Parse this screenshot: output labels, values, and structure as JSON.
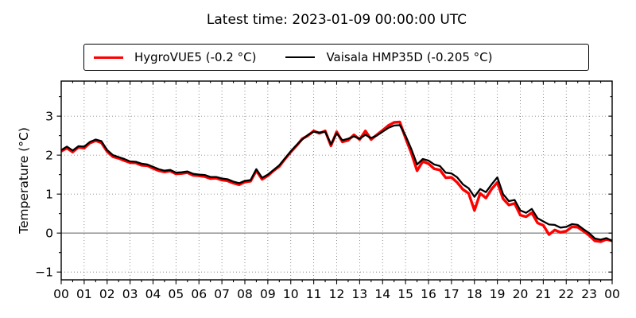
{
  "title": "Latest time: 2023-01-09 00:00:00 UTC",
  "chart_data": {
    "type": "line",
    "title": "Latest time: 2023-01-09 00:00:00 UTC",
    "xlabel": "",
    "ylabel": "Temperature (°C)",
    "xlim": [
      0,
      24
    ],
    "ylim": [
      -1.2,
      3.9
    ],
    "grid": true,
    "grid_style": "dotted",
    "zero_line": 0,
    "zero_line_color": "#8a8a8a",
    "legend_position": "top-center",
    "x_ticks": [
      0,
      1,
      2,
      3,
      4,
      5,
      6,
      7,
      8,
      9,
      10,
      11,
      12,
      13,
      14,
      15,
      16,
      17,
      18,
      19,
      20,
      21,
      22,
      23,
      24
    ],
    "x_tick_labels": [
      "00",
      "01",
      "02",
      "03",
      "04",
      "05",
      "06",
      "07",
      "08",
      "09",
      "10",
      "11",
      "12",
      "13",
      "14",
      "15",
      "16",
      "17",
      "18",
      "19",
      "20",
      "21",
      "22",
      "23",
      "00"
    ],
    "y_ticks": [
      -1,
      0,
      1,
      2,
      3
    ],
    "y_tick_labels": [
      "−1",
      "0",
      "1",
      "2",
      "3"
    ],
    "x_start": 0,
    "x_step": 0.25,
    "series": [
      {
        "name": "HygroVUE5 (-0.2 °C)",
        "latest_value_c": -0.2,
        "color": "#ff0000",
        "width": 3.4,
        "values": [
          2.1,
          2.18,
          2.08,
          2.2,
          2.18,
          2.31,
          2.37,
          2.32,
          2.09,
          1.96,
          1.92,
          1.86,
          1.81,
          1.8,
          1.74,
          1.73,
          1.66,
          1.6,
          1.57,
          1.59,
          1.52,
          1.53,
          1.55,
          1.48,
          1.47,
          1.45,
          1.4,
          1.41,
          1.36,
          1.34,
          1.28,
          1.24,
          1.31,
          1.33,
          1.6,
          1.38,
          1.47,
          1.6,
          1.71,
          1.9,
          2.08,
          2.24,
          2.42,
          2.5,
          2.62,
          2.56,
          2.62,
          2.24,
          2.6,
          2.34,
          2.38,
          2.52,
          2.4,
          2.62,
          2.4,
          2.52,
          2.64,
          2.76,
          2.84,
          2.85,
          2.44,
          2.06,
          1.6,
          1.84,
          1.78,
          1.65,
          1.62,
          1.42,
          1.43,
          1.3,
          1.12,
          1.02,
          0.58,
          1.02,
          0.9,
          1.13,
          1.3,
          0.88,
          0.72,
          0.76,
          0.46,
          0.42,
          0.52,
          0.26,
          0.2,
          -0.04,
          0.08,
          0.02,
          0.05,
          0.16,
          0.15,
          0.05,
          -0.06,
          -0.2,
          -0.22,
          -0.16,
          -0.2
        ]
      },
      {
        "name": "Vaisala HMP35D (-0.205 °C)",
        "latest_value_c": -0.205,
        "color": "#000000",
        "width": 2.3,
        "values": [
          2.13,
          2.22,
          2.12,
          2.23,
          2.22,
          2.34,
          2.4,
          2.36,
          2.13,
          2.0,
          1.95,
          1.9,
          1.84,
          1.83,
          1.78,
          1.76,
          1.7,
          1.64,
          1.6,
          1.62,
          1.55,
          1.56,
          1.58,
          1.52,
          1.5,
          1.49,
          1.44,
          1.44,
          1.4,
          1.38,
          1.32,
          1.28,
          1.34,
          1.36,
          1.64,
          1.42,
          1.5,
          1.62,
          1.74,
          1.92,
          2.1,
          2.26,
          2.4,
          2.52,
          2.6,
          2.58,
          2.6,
          2.28,
          2.56,
          2.38,
          2.42,
          2.48,
          2.42,
          2.52,
          2.44,
          2.5,
          2.6,
          2.7,
          2.76,
          2.77,
          2.5,
          2.16,
          1.76,
          1.9,
          1.86,
          1.76,
          1.72,
          1.55,
          1.53,
          1.43,
          1.25,
          1.15,
          0.93,
          1.13,
          1.05,
          1.25,
          1.43,
          1.0,
          0.82,
          0.85,
          0.58,
          0.52,
          0.62,
          0.38,
          0.3,
          0.22,
          0.21,
          0.14,
          0.16,
          0.23,
          0.21,
          0.1,
          0.0,
          -0.14,
          -0.17,
          -0.13,
          -0.2
        ]
      }
    ]
  }
}
